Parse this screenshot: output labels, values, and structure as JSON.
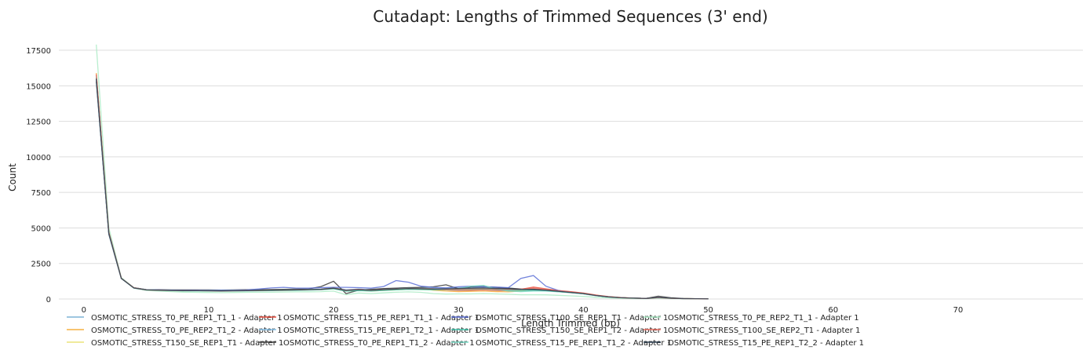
{
  "chart_data": {
    "type": "line",
    "title": "Cutadapt: Lengths of Trimmed Sequences (3' end)",
    "xlabel": "Length Trimmed (bp)",
    "ylabel": "Count",
    "xlim": [
      -2,
      80
    ],
    "ylim": [
      0,
      18000
    ],
    "xticks": [
      "0",
      "10",
      "20",
      "30",
      "40",
      "50",
      "60",
      "70"
    ],
    "yticks": [
      "0",
      "2500",
      "5000",
      "7500",
      "10000",
      "12500",
      "15000",
      "17500"
    ],
    "grid": "horizontal",
    "legend_position": "bottom",
    "x": [
      1,
      2,
      3,
      4,
      5,
      6,
      7,
      8,
      9,
      10,
      11,
      12,
      13,
      14,
      15,
      16,
      17,
      18,
      19,
      20,
      21,
      22,
      23,
      24,
      25,
      26,
      27,
      28,
      29,
      30,
      31,
      32,
      33,
      34,
      35,
      36,
      37,
      38,
      39,
      40,
      41,
      42,
      43,
      44,
      45,
      46,
      47,
      48,
      49,
      50
    ],
    "series": [
      {
        "name": "OSMOTIC_STRESS_T0_PE_REP1_T1_1 - Adapter 1",
        "color": "#7fb3d5",
        "values": [
          15400,
          4600,
          1450,
          780,
          640,
          620,
          610,
          590,
          600,
          590,
          580,
          590,
          600,
          620,
          640,
          650,
          660,
          680,
          700,
          820,
          650,
          700,
          640,
          700,
          760,
          800,
          780,
          760,
          780,
          800,
          820,
          850,
          800,
          780,
          700,
          690,
          640,
          540,
          460,
          380,
          250,
          150,
          90,
          60,
          40,
          120,
          60,
          30,
          20,
          10
        ]
      },
      {
        "name": "OSMOTIC_STRESS_T0_PE_REP2_T1_2 - Adapter 1",
        "color": "#f5b041",
        "values": [
          15900,
          4700,
          1480,
          790,
          640,
          620,
          600,
          580,
          590,
          580,
          570,
          580,
          590,
          600,
          620,
          630,
          640,
          660,
          680,
          760,
          600,
          650,
          600,
          650,
          700,
          740,
          720,
          620,
          560,
          520,
          540,
          560,
          520,
          500,
          560,
          680,
          600,
          520,
          460,
          380,
          260,
          160,
          100,
          60,
          40,
          110,
          60,
          30,
          20,
          10
        ]
      },
      {
        "name": "OSMOTIC_STRESS_T150_SE_REP1_T1 - Adapter 1",
        "color": "#ebe47a",
        "values": [
          15600,
          4650,
          1470,
          780,
          620,
          600,
          590,
          580,
          580,
          570,
          560,
          570,
          580,
          590,
          600,
          610,
          620,
          640,
          660,
          720,
          560,
          600,
          560,
          600,
          640,
          680,
          660,
          640,
          650,
          660,
          680,
          700,
          660,
          620,
          600,
          620,
          580,
          520,
          450,
          370,
          250,
          150,
          90,
          60,
          40,
          100,
          50,
          30,
          20,
          10
        ]
      },
      {
        "name": "OSMOTIC_STRESS_T15_PE_REP1_T1_1 - Adapter 1",
        "color": "#e74c3c",
        "values": [
          15800,
          4700,
          1460,
          790,
          650,
          630,
          610,
          600,
          600,
          590,
          580,
          590,
          600,
          610,
          630,
          640,
          650,
          670,
          690,
          780,
          620,
          680,
          630,
          680,
          720,
          760,
          740,
          720,
          640,
          600,
          620,
          640,
          600,
          580,
          680,
          840,
          720,
          600,
          520,
          420,
          280,
          170,
          100,
          60,
          40,
          100,
          50,
          30,
          20,
          10
        ]
      },
      {
        "name": "OSMOTIC_STRESS_T15_PE_REP1_T2_1 - Adapter 1",
        "color": "#85c1e9",
        "values": [
          15700,
          4650,
          1450,
          780,
          640,
          620,
          600,
          590,
          590,
          580,
          570,
          580,
          590,
          610,
          620,
          630,
          640,
          660,
          680,
          760,
          600,
          660,
          610,
          660,
          700,
          740,
          720,
          700,
          720,
          740,
          760,
          780,
          740,
          720,
          680,
          660,
          620,
          540,
          460,
          380,
          250,
          150,
          90,
          60,
          40,
          110,
          55,
          30,
          20,
          10
        ]
      },
      {
        "name": "OSMOTIC_STRESS_T0_PE_REP1_T1_2 - Adapter 1",
        "color": "#3a3a3a",
        "values": [
          15300,
          4550,
          1440,
          800,
          660,
          650,
          640,
          640,
          640,
          640,
          630,
          640,
          650,
          660,
          670,
          680,
          700,
          710,
          880,
          1250,
          380,
          620,
          680,
          740,
          760,
          800,
          820,
          860,
          1000,
          720,
          860,
          880,
          820,
          760,
          700,
          690,
          640,
          560,
          480,
          400,
          250,
          150,
          90,
          60,
          40,
          200,
          90,
          40,
          20,
          10
        ]
      },
      {
        "name": "OSMOTIC_STRESS_T100_SE_REP1_T1 - Adapter 1",
        "color": "#5b6fd6",
        "values": [
          15500,
          4600,
          1450,
          790,
          650,
          640,
          630,
          620,
          630,
          620,
          620,
          630,
          640,
          700,
          780,
          820,
          770,
          760,
          800,
          820,
          820,
          800,
          760,
          880,
          1300,
          1180,
          900,
          820,
          780,
          860,
          900,
          860,
          840,
          800,
          1450,
          1650,
          900,
          600,
          460,
          370,
          240,
          150,
          90,
          60,
          40,
          110,
          55,
          30,
          20,
          10
        ]
      },
      {
        "name": "OSMOTIC_STRESS_T150_SE_REP1_T2 - Adapter 1",
        "color": "#48c9b0",
        "values": [
          15600,
          4620,
          1450,
          770,
          620,
          600,
          590,
          570,
          570,
          560,
          550,
          560,
          570,
          580,
          590,
          600,
          610,
          630,
          650,
          710,
          550,
          590,
          560,
          600,
          640,
          680,
          660,
          640,
          650,
          660,
          680,
          700,
          660,
          620,
          600,
          620,
          580,
          520,
          450,
          370,
          250,
          150,
          90,
          60,
          40,
          100,
          50,
          30,
          20,
          10
        ]
      },
      {
        "name": "OSMOTIC_STRESS_T15_PE_REP1_T1_2 - Adapter 1",
        "color": "#76d7c4",
        "values": [
          15700,
          4680,
          1460,
          790,
          650,
          630,
          610,
          600,
          600,
          590,
          580,
          590,
          600,
          610,
          630,
          640,
          650,
          670,
          690,
          770,
          610,
          670,
          620,
          670,
          710,
          750,
          730,
          710,
          700,
          720,
          900,
          960,
          700,
          560,
          520,
          560,
          560,
          500,
          440,
          360,
          240,
          140,
          80,
          60,
          40,
          100,
          50,
          30,
          20,
          10
        ]
      },
      {
        "name": "OSMOTIC_STRESS_T0_PE_REP2_T1_1 - Adapter 1",
        "color": "#abebc6",
        "values": [
          17900,
          5000,
          1500,
          800,
          600,
          560,
          520,
          480,
          470,
          460,
          450,
          460,
          470,
          480,
          480,
          490,
          500,
          510,
          520,
          560,
          300,
          420,
          380,
          430,
          480,
          500,
          470,
          380,
          350,
          360,
          360,
          380,
          360,
          330,
          300,
          300,
          290,
          260,
          220,
          180,
          120,
          80,
          50,
          30,
          20,
          60,
          30,
          20,
          10,
          5
        ]
      },
      {
        "name": "OSMOTIC_STRESS_T100_SE_REP2_T1 - Adapter 1",
        "color": "#ec7063",
        "values": [
          15800,
          4700,
          1460,
          790,
          640,
          620,
          600,
          590,
          590,
          580,
          570,
          580,
          590,
          600,
          620,
          630,
          640,
          660,
          680,
          760,
          600,
          660,
          610,
          660,
          700,
          740,
          720,
          700,
          680,
          700,
          720,
          740,
          700,
          680,
          700,
          760,
          680,
          580,
          500,
          400,
          260,
          160,
          90,
          60,
          40,
          100,
          50,
          30,
          20,
          10
        ]
      },
      {
        "name": "OSMOTIC_STRESS_T15_PE_REP1_T2_2 - Adapter 1",
        "color": "#2c3e50",
        "values": [
          15500,
          4620,
          1450,
          780,
          640,
          620,
          600,
          590,
          590,
          580,
          570,
          580,
          590,
          600,
          620,
          630,
          640,
          660,
          680,
          760,
          600,
          660,
          610,
          660,
          700,
          740,
          720,
          700,
          720,
          740,
          760,
          780,
          740,
          720,
          680,
          660,
          620,
          540,
          460,
          380,
          250,
          150,
          90,
          60,
          40,
          110,
          55,
          30,
          20,
          10
        ]
      }
    ]
  }
}
